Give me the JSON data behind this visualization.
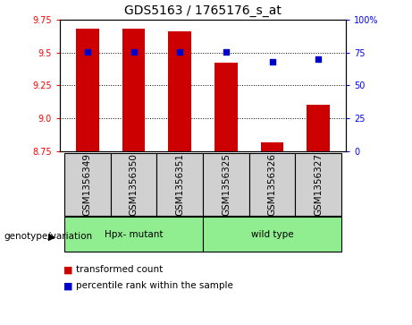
{
  "title": "GDS5163 / 1765176_s_at",
  "samples": [
    "GSM1356349",
    "GSM1356350",
    "GSM1356351",
    "GSM1356325",
    "GSM1356326",
    "GSM1356327"
  ],
  "transformed_count": [
    9.68,
    9.68,
    9.66,
    9.42,
    8.82,
    9.1
  ],
  "percentile_rank": [
    75.5,
    75.5,
    75.5,
    75.5,
    68.0,
    70.0
  ],
  "groups": [
    {
      "label": "Hpx- mutant",
      "indices": [
        0,
        1,
        2
      ],
      "color": "#90EE90"
    },
    {
      "label": "wild type",
      "indices": [
        3,
        4,
        5
      ],
      "color": "#90EE90"
    }
  ],
  "bar_color": "#CC0000",
  "dot_color": "#0000CC",
  "ylim_left": [
    8.75,
    9.75
  ],
  "ylim_right": [
    0,
    100
  ],
  "yticks_left": [
    8.75,
    9.0,
    9.25,
    9.5,
    9.75
  ],
  "yticks_right": [
    0,
    25,
    50,
    75,
    100
  ],
  "ytick_labels_right": [
    "0",
    "25",
    "50",
    "75",
    "100%"
  ],
  "grid_values": [
    9.0,
    9.25,
    9.5,
    9.75
  ],
  "bar_width": 0.5,
  "bar_color_rgb": "#CC0000",
  "dot_color_rgb": "#0000CC",
  "genotype_label": "genotype/variation",
  "legend_transformed": "transformed count",
  "legend_percentile": "percentile rank within the sample",
  "sample_box_color": "#d0d0d0",
  "title_fontsize": 10,
  "tick_fontsize": 7,
  "label_fontsize": 7.5,
  "legend_fontsize": 7.5
}
